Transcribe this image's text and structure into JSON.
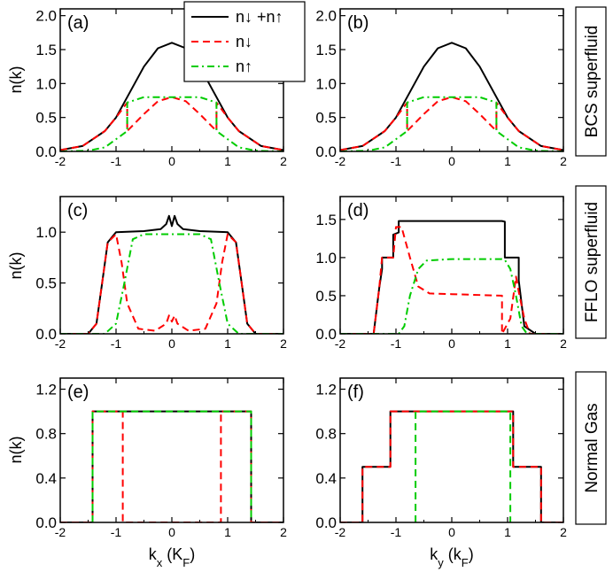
{
  "figure": {
    "row_labels": [
      "BCS superfluid",
      "FFLO superfluid",
      "Normal Gas"
    ],
    "x_labels": [
      "k_x (K_F)",
      "k_y (k_F)"
    ],
    "y_label": "n(k)",
    "legend": [
      {
        "label": "n↓ +n↑",
        "color": "#000000",
        "dash": "solid"
      },
      {
        "label": "n↓",
        "color": "#ff0000",
        "dash": "dashed"
      },
      {
        "label": "n↑",
        "color": "#00cc00",
        "dash": "dashdot"
      }
    ]
  },
  "chart_data": [
    {
      "type": "line",
      "panel": "(a)",
      "xlim": [
        -2,
        2
      ],
      "ylim": [
        0,
        2.1
      ],
      "xticks": [
        -2,
        -1,
        0,
        1,
        2
      ],
      "yticks": [
        0.0,
        0.5,
        1.0,
        1.5,
        2.0
      ],
      "series": [
        {
          "name": "n↓ +n↑",
          "color": "#000000",
          "dash": "solid",
          "x": [
            -2,
            -1.6,
            -1.2,
            -1.0,
            -0.8,
            -0.5,
            -0.25,
            0,
            0.25,
            0.5,
            0.8,
            1.0,
            1.2,
            1.6,
            2
          ],
          "y": [
            0.02,
            0.08,
            0.3,
            0.5,
            0.8,
            1.25,
            1.52,
            1.6,
            1.52,
            1.25,
            0.8,
            0.5,
            0.3,
            0.08,
            0.02
          ]
        },
        {
          "name": "n↓",
          "color": "#ff0000",
          "dash": "dashed",
          "x": [
            -2,
            -1.6,
            -1.2,
            -1.0,
            -0.8,
            -0.8,
            -0.5,
            -0.25,
            0,
            0.25,
            0.5,
            0.8,
            0.8,
            1.0,
            1.2,
            1.6,
            2
          ],
          "y": [
            0.02,
            0.08,
            0.3,
            0.5,
            0.72,
            0.3,
            0.55,
            0.74,
            0.8,
            0.74,
            0.55,
            0.3,
            0.72,
            0.5,
            0.3,
            0.08,
            0.02
          ]
        },
        {
          "name": "n↑",
          "color": "#00cc00",
          "dash": "dashdot",
          "x": [
            -2,
            -1.5,
            -1.2,
            -0.8,
            -0.8,
            -0.5,
            0,
            0.5,
            0.8,
            0.8,
            1.2,
            1.5,
            2
          ],
          "y": [
            0.0,
            0.01,
            0.06,
            0.3,
            0.72,
            0.8,
            0.8,
            0.8,
            0.72,
            0.3,
            0.06,
            0.01,
            0.0
          ]
        }
      ]
    },
    {
      "type": "line",
      "panel": "(b)",
      "xlim": [
        -2,
        2
      ],
      "ylim": [
        0,
        2.1
      ],
      "xticks": [
        -2,
        -1,
        0,
        1,
        2
      ],
      "yticks": [
        0.0,
        0.5,
        1.0,
        1.5,
        2.0
      ],
      "series": [
        {
          "name": "n↓ +n↑",
          "color": "#000000",
          "dash": "solid",
          "x": [
            -2,
            -1.6,
            -1.2,
            -1.0,
            -0.8,
            -0.5,
            -0.25,
            0,
            0.25,
            0.5,
            0.8,
            1.0,
            1.2,
            1.6,
            2
          ],
          "y": [
            0.02,
            0.08,
            0.3,
            0.5,
            0.8,
            1.25,
            1.52,
            1.6,
            1.52,
            1.25,
            0.8,
            0.5,
            0.3,
            0.08,
            0.02
          ]
        },
        {
          "name": "n↓",
          "color": "#ff0000",
          "dash": "dashed",
          "x": [
            -2,
            -1.6,
            -1.2,
            -1.0,
            -0.8,
            -0.8,
            -0.5,
            -0.25,
            0,
            0.25,
            0.5,
            0.8,
            0.8,
            1.0,
            1.2,
            1.6,
            2
          ],
          "y": [
            0.02,
            0.08,
            0.3,
            0.5,
            0.72,
            0.3,
            0.55,
            0.74,
            0.8,
            0.74,
            0.55,
            0.3,
            0.72,
            0.5,
            0.3,
            0.08,
            0.02
          ]
        },
        {
          "name": "n↑",
          "color": "#00cc00",
          "dash": "dashdot",
          "x": [
            -2,
            -1.5,
            -1.2,
            -0.8,
            -0.8,
            -0.5,
            0,
            0.5,
            0.8,
            0.8,
            1.2,
            1.5,
            2
          ],
          "y": [
            0.0,
            0.01,
            0.06,
            0.3,
            0.72,
            0.8,
            0.8,
            0.8,
            0.72,
            0.3,
            0.06,
            0.01,
            0.0
          ]
        }
      ]
    },
    {
      "type": "line",
      "panel": "(c)",
      "xlim": [
        -2,
        2
      ],
      "ylim": [
        0,
        1.35
      ],
      "xticks": [
        -2,
        -1,
        0,
        1,
        2
      ],
      "yticks": [
        0.0,
        0.5,
        1.0
      ],
      "series": [
        {
          "name": "n↓ +n↑",
          "color": "#000000",
          "dash": "solid",
          "x": [
            -2,
            -1.5,
            -1.35,
            -1.25,
            -1.15,
            -1.0,
            -0.5,
            -0.2,
            -0.1,
            -0.05,
            0,
            0.05,
            0.1,
            0.2,
            0.5,
            1.0,
            1.15,
            1.25,
            1.35,
            1.5,
            2
          ],
          "y": [
            0.0,
            0.0,
            0.1,
            0.5,
            0.9,
            1.0,
            1.01,
            1.03,
            1.08,
            1.16,
            1.06,
            1.16,
            1.08,
            1.03,
            1.01,
            1.0,
            0.9,
            0.5,
            0.1,
            0.0,
            0.0
          ]
        },
        {
          "name": "n↓",
          "color": "#ff0000",
          "dash": "dashed",
          "x": [
            -2,
            -1.5,
            -1.35,
            -1.25,
            -1.15,
            -1.0,
            -0.9,
            -0.8,
            -0.6,
            -0.3,
            -0.1,
            -0.05,
            0,
            0.05,
            0.1,
            0.3,
            0.6,
            0.8,
            0.9,
            1.0,
            1.15,
            1.25,
            1.35,
            1.5,
            2
          ],
          "y": [
            0.0,
            0.0,
            0.1,
            0.5,
            0.9,
            0.98,
            0.7,
            0.3,
            0.05,
            0.03,
            0.1,
            0.18,
            0.12,
            0.18,
            0.1,
            0.03,
            0.05,
            0.3,
            0.7,
            0.98,
            0.9,
            0.5,
            0.1,
            0.0,
            0.0
          ]
        },
        {
          "name": "n↑",
          "color": "#00cc00",
          "dash": "dashdot",
          "x": [
            -2,
            -1.2,
            -1.0,
            -0.85,
            -0.7,
            -0.5,
            0,
            0.5,
            0.7,
            0.85,
            1.0,
            1.2,
            2
          ],
          "y": [
            0.0,
            0.0,
            0.1,
            0.5,
            0.93,
            0.98,
            0.98,
            0.98,
            0.93,
            0.5,
            0.1,
            0.0,
            0.0
          ]
        }
      ]
    },
    {
      "type": "line",
      "panel": "(d)",
      "xlim": [
        -2,
        2
      ],
      "ylim": [
        0,
        1.8
      ],
      "xticks": [
        -2,
        -1,
        0,
        1,
        2
      ],
      "yticks": [
        0.0,
        0.5,
        1.0,
        1.5
      ],
      "series": [
        {
          "name": "n↓ +n↑",
          "color": "#000000",
          "dash": "solid",
          "x": [
            -2,
            -1.4,
            -1.3,
            -1.25,
            -1.25,
            -1.05,
            -1.05,
            -0.95,
            -0.95,
            0.9,
            0.95,
            0.95,
            1.2,
            1.2,
            1.3,
            1.5,
            2
          ],
          "y": [
            0.0,
            0.0,
            0.6,
            0.85,
            1.0,
            1.0,
            1.3,
            1.33,
            1.48,
            1.48,
            1.47,
            1.0,
            1.0,
            0.7,
            0.1,
            0.0,
            0.0
          ]
        },
        {
          "name": "n↓",
          "color": "#ff0000",
          "dash": "dashed",
          "x": [
            -2,
            -1.4,
            -1.3,
            -1.25,
            -1.05,
            -1.0,
            -0.9,
            -0.75,
            -0.6,
            -0.4,
            0,
            0.88,
            0.9,
            0.9,
            1.05,
            1.15,
            1.2,
            1.3,
            1.4,
            2
          ],
          "y": [
            0.0,
            0.0,
            0.6,
            1.0,
            1.0,
            1.4,
            1.4,
            1.0,
            0.62,
            0.53,
            0.52,
            0.5,
            0.5,
            0.0,
            0.2,
            0.75,
            0.55,
            0.2,
            0.0,
            0.0
          ]
        },
        {
          "name": "n↑",
          "color": "#00cc00",
          "dash": "dashdot",
          "x": [
            -2,
            -0.95,
            -0.85,
            -0.75,
            -0.6,
            -0.45,
            0,
            0.9,
            0.95,
            1.05,
            1.15,
            1.25,
            1.35,
            2
          ],
          "y": [
            0.0,
            0.0,
            0.1,
            0.5,
            0.85,
            0.96,
            0.98,
            0.98,
            0.97,
            0.85,
            0.5,
            0.1,
            0.0,
            0.0
          ]
        }
      ]
    },
    {
      "type": "line",
      "panel": "(e)",
      "xlim": [
        -2,
        2
      ],
      "ylim": [
        0,
        1.3
      ],
      "xticks": [
        -2,
        -1,
        0,
        1,
        2
      ],
      "yticks": [
        0.0,
        0.4,
        0.8,
        1.2
      ],
      "series": [
        {
          "name": "n↓ +n↑",
          "color": "#000000",
          "dash": "solid",
          "x": [
            -2,
            -1.42,
            -1.42,
            1.42,
            1.42,
            2
          ],
          "y": [
            0,
            0,
            1,
            1,
            0,
            0
          ]
        },
        {
          "name": "n↓",
          "color": "#ff0000",
          "dash": "dashed",
          "x": [
            -2,
            -1.42,
            -1.42,
            -0.88,
            -0.88,
            0.88,
            0.88,
            1.42,
            1.42,
            2
          ],
          "y": [
            0,
            0,
            1,
            1,
            0,
            0,
            1,
            1,
            0,
            0
          ]
        },
        {
          "name": "n↑",
          "color": "#00cc00",
          "dash": "dashed",
          "x": [
            -1.42,
            -1.42,
            1.42,
            1.42
          ],
          "y": [
            0,
            1,
            1,
            0
          ]
        }
      ]
    },
    {
      "type": "line",
      "panel": "(f)",
      "xlim": [
        -2,
        2
      ],
      "ylim": [
        0,
        1.3
      ],
      "xticks": [
        -2,
        -1,
        0,
        1,
        2
      ],
      "yticks": [
        0.0,
        0.4,
        0.8,
        1.2
      ],
      "series": [
        {
          "name": "n↓ +n↑",
          "color": "#000000",
          "dash": "solid",
          "x": [
            -2,
            -1.6,
            -1.6,
            -1.1,
            -1.1,
            1.1,
            1.1,
            1.6,
            1.6,
            2
          ],
          "y": [
            0,
            0,
            0.5,
            0.5,
            1,
            1,
            0.5,
            0.5,
            0,
            0
          ]
        },
        {
          "name": "n↓",
          "color": "#ff0000",
          "dash": "dashed",
          "x": [
            -2,
            -1.6,
            -1.6,
            -1.1,
            -1.1,
            1.1,
            1.1,
            1.6,
            1.6,
            2
          ],
          "y": [
            0,
            0,
            0.5,
            0.5,
            1,
            1,
            0.5,
            0.5,
            0,
            0
          ]
        },
        {
          "name": "n↑",
          "color": "#00cc00",
          "dash": "dashed",
          "x": [
            -0.65,
            -0.65,
            1.05,
            1.05
          ],
          "y": [
            0,
            1,
            1,
            0
          ]
        }
      ]
    }
  ]
}
